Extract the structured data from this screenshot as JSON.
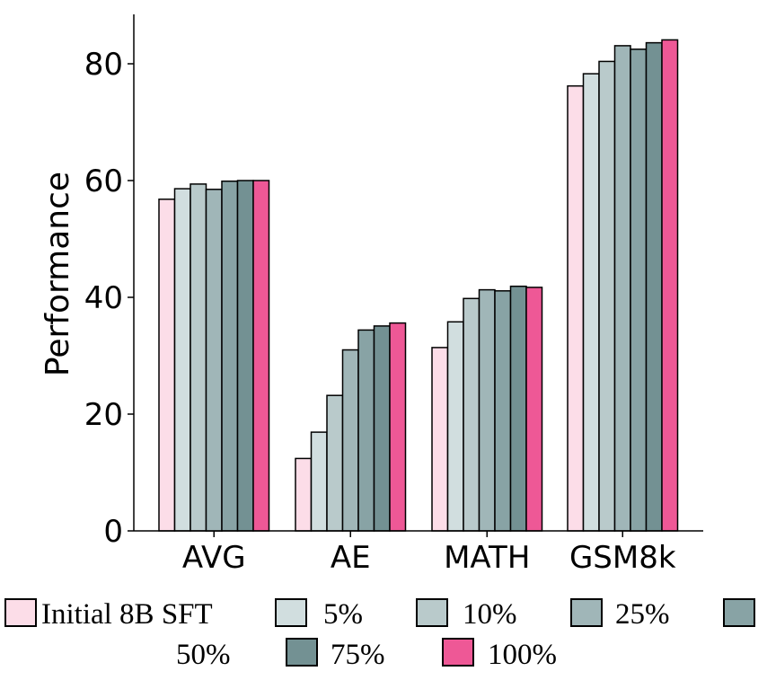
{
  "chart_data": {
    "type": "bar",
    "title": "",
    "xlabel": "",
    "ylabel": "Performance",
    "ylim": [
      0,
      88
    ],
    "yticks": [
      0,
      20,
      40,
      60,
      80
    ],
    "grid": false,
    "legend_position": "bottom",
    "categories": [
      "AVG",
      "AE",
      "MATH",
      "GSM8k"
    ],
    "series": [
      {
        "name": "Initial 8B SFT",
        "color": "#fcdde8",
        "values": [
          56.8,
          12.4,
          31.4,
          76.2
        ]
      },
      {
        "name": "5%",
        "color": "#d1dedf",
        "values": [
          58.6,
          16.9,
          35.8,
          78.3
        ]
      },
      {
        "name": "10%",
        "color": "#b9cacb",
        "values": [
          59.4,
          23.2,
          39.8,
          80.4
        ]
      },
      {
        "name": "25%",
        "color": "#a0b6b8",
        "values": [
          58.5,
          31.0,
          41.3,
          83.1
        ]
      },
      {
        "name": "50%",
        "color": "#88a3a5",
        "values": [
          59.9,
          34.4,
          41.1,
          82.5
        ]
      },
      {
        "name": "75%",
        "color": "#739193",
        "values": [
          60.0,
          35.1,
          41.9,
          83.6
        ]
      },
      {
        "name": "100%",
        "color": "#ee5896",
        "values": [
          60.0,
          35.6,
          41.7,
          84.1
        ]
      }
    ]
  }
}
